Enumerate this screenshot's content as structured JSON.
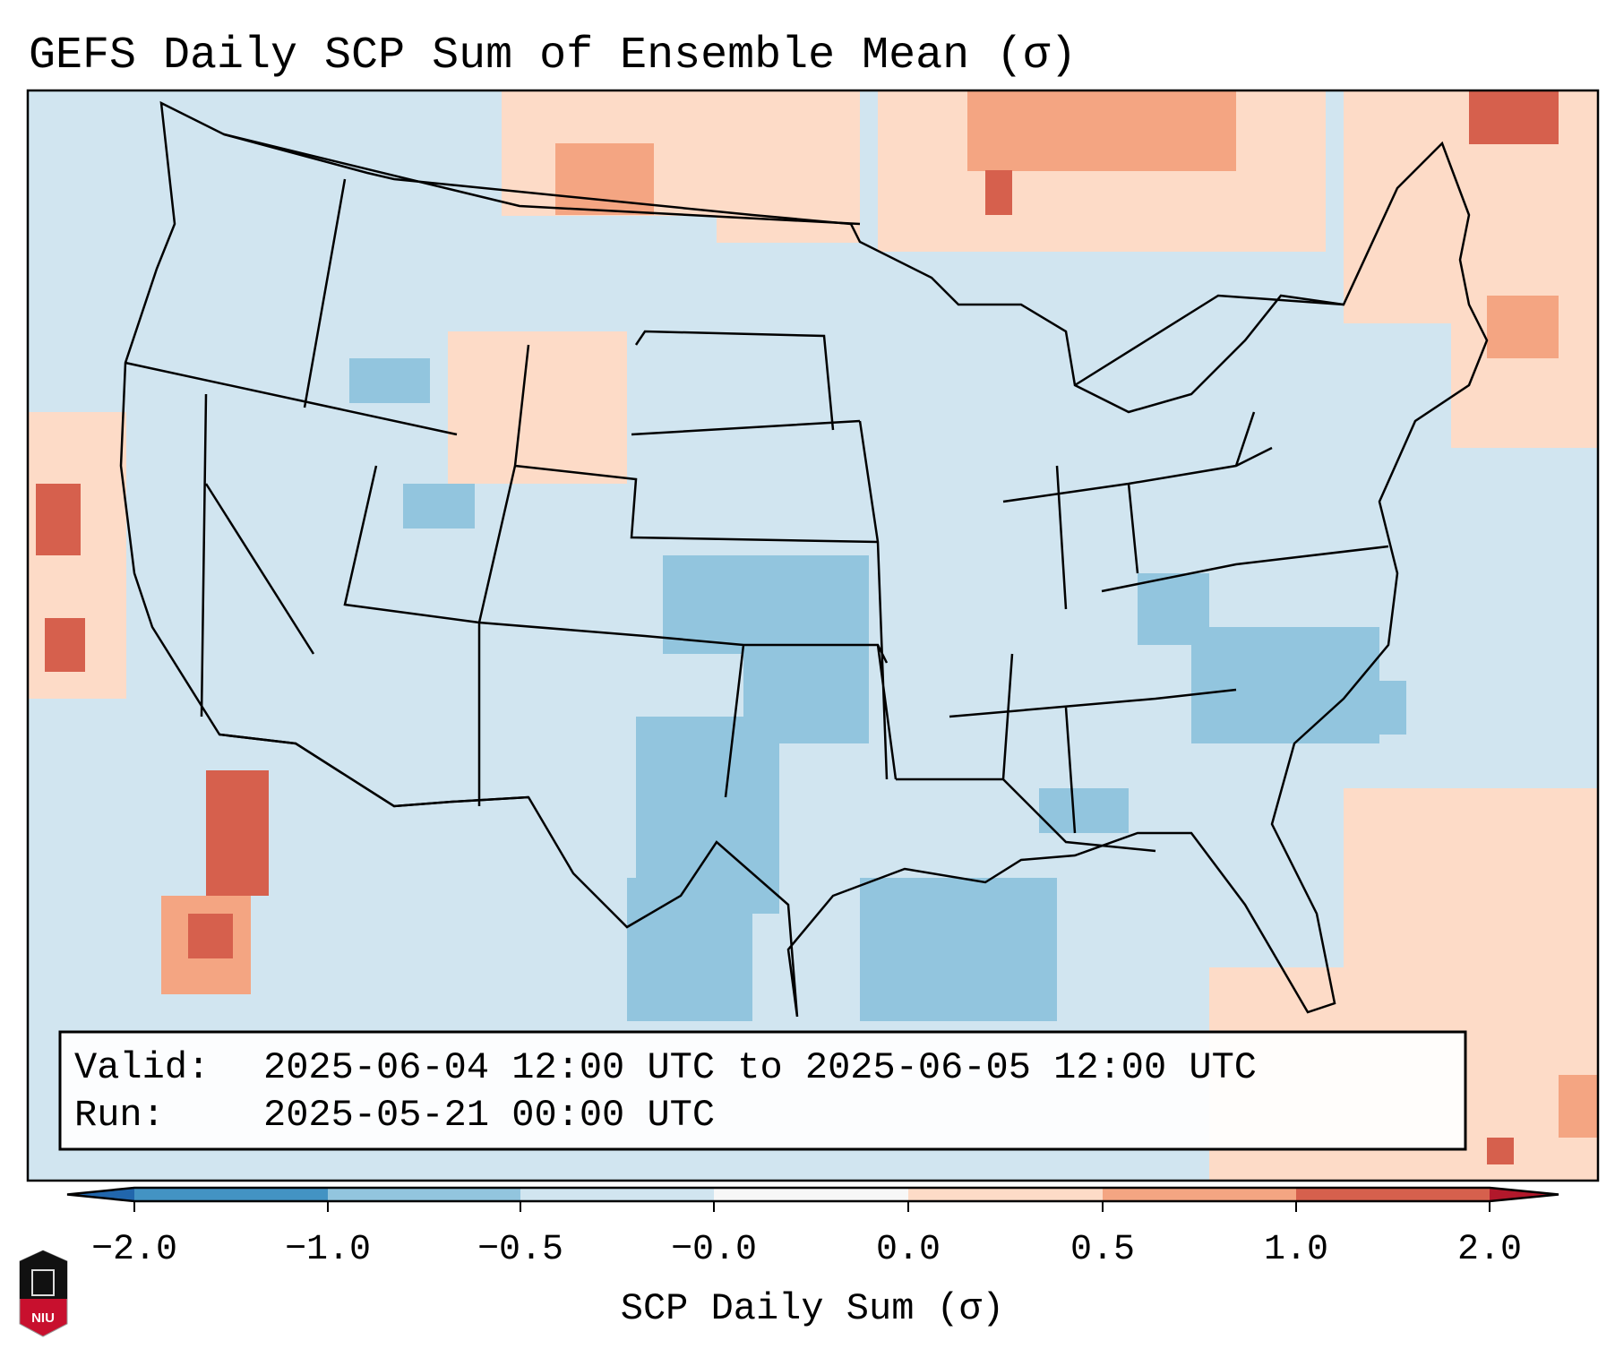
{
  "title": "GEFS Daily SCP Sum of Ensemble Mean (σ)",
  "info_box": {
    "valid_label": "Valid:",
    "valid_value": "2025-06-04 12:00 UTC to 2025-06-05 12:00 UTC",
    "run_label": "Run:",
    "run_value": "2025-05-21 00:00 UTC"
  },
  "logo_text": "NIU",
  "chart_data": {
    "type": "heatmap",
    "title": "GEFS Daily SCP Sum of Ensemble Mean (σ)",
    "colorbar": {
      "label": "SCP Daily Sum (σ)",
      "tick_labels": [
        "−2.0",
        "−1.0",
        "−0.5",
        "−0.0",
        "0.0",
        "0.5",
        "1.0",
        "2.0"
      ],
      "bounds": [
        -2.0,
        -1.0,
        -0.5,
        -0.0,
        0.0,
        0.5,
        1.0,
        2.0
      ],
      "colors": [
        "#4393c3",
        "#92c5de",
        "#d1e5f0",
        "#f7f7f7",
        "#fddbc7",
        "#f4a582",
        "#d6604d"
      ],
      "extend_low_color": "#2166ac",
      "extend_high_color": "#b2182b",
      "extend": "both",
      "orientation": "horizontal",
      "placement": "bottom"
    },
    "domain": "Contiguous United States",
    "background_value_color": "#d1e5f0"
  }
}
